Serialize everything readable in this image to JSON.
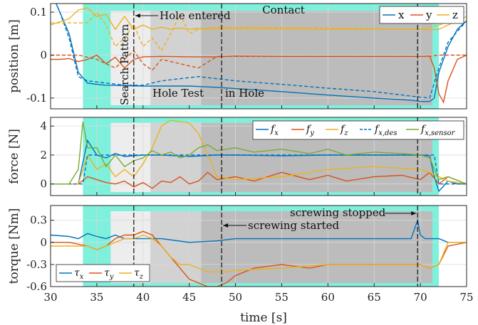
{
  "chart_data": [
    {
      "type": "line",
      "ylabel": "position [m]",
      "xlim": [
        30,
        75
      ],
      "ylim": [
        -0.125,
        0.12
      ],
      "yticks": [
        {
          "v": -0.1,
          "label": "-0.1"
        },
        {
          "v": 0,
          "label": "0"
        },
        {
          "v": 0.1,
          "label": "0.1"
        }
      ],
      "legend_position": "top-right",
      "annotations": [
        "Contact",
        "Hole entered",
        "Search Pattern",
        "Hole Test",
        "in Hole"
      ],
      "series": [
        {
          "name": "x",
          "color": "#0072bd",
          "dashed": false,
          "x": [
            30,
            31,
            32,
            33,
            34,
            35,
            36,
            38,
            40,
            42,
            45,
            48,
            50,
            55,
            60,
            65,
            69,
            70,
            71,
            71.5,
            72,
            73,
            74,
            75
          ],
          "y": [
            0.15,
            0.1,
            0.05,
            -0.04,
            -0.065,
            -0.068,
            -0.07,
            -0.071,
            -0.072,
            -0.072,
            -0.072,
            -0.075,
            -0.078,
            -0.085,
            -0.093,
            -0.1,
            -0.105,
            -0.108,
            -0.108,
            -0.1,
            -0.04,
            0.02,
            0.06,
            0.08
          ]
        },
        {
          "name": "y",
          "color": "#d95319",
          "dashed": false,
          "x": [
            30,
            31,
            32,
            33,
            34,
            35,
            36,
            37,
            38,
            39,
            40,
            42,
            45,
            48,
            50,
            55,
            60,
            65,
            70,
            71,
            71.5,
            72,
            72.5,
            73,
            74,
            75
          ],
          "y": [
            -0.01,
            -0.01,
            -0.008,
            -0.015,
            -0.01,
            0,
            -0.02,
            -0.005,
            -0.03,
            -0.01,
            -0.004,
            -0.003,
            -0.004,
            -0.004,
            -0.002,
            -0.003,
            -0.003,
            -0.003,
            -0.003,
            -0.002,
            -0.03,
            -0.09,
            -0.11,
            -0.06,
            -0.01,
            0
          ]
        },
        {
          "name": "z",
          "color": "#edb120",
          "dashed": false,
          "x": [
            30,
            32,
            33,
            34,
            35,
            36,
            37,
            38,
            39,
            40,
            41,
            42,
            43,
            44,
            45,
            46,
            47,
            48,
            50,
            55,
            60,
            65,
            70,
            71,
            72,
            73,
            74,
            75
          ],
          "y": [
            0.07,
            0.085,
            0.105,
            0.11,
            0.09,
            0.095,
            0.06,
            0.09,
            0.06,
            0.07,
            0.06,
            0.065,
            0.06,
            0.063,
            0.06,
            0.062,
            0.06,
            0.062,
            0.061,
            0.061,
            0.06,
            0.06,
            0.06,
            0.059,
            0.06,
            0.07,
            0.08,
            0.09
          ]
        },
        {
          "name": "x_des",
          "color": "#0072bd",
          "dashed": true,
          "x": [
            30,
            31,
            32,
            33,
            34,
            36,
            38,
            40,
            42,
            44,
            46,
            48,
            50,
            55,
            60,
            65,
            70,
            71,
            72,
            73,
            75
          ],
          "y": [
            0.15,
            0.1,
            0.04,
            -0.05,
            -0.06,
            -0.065,
            -0.07,
            -0.07,
            -0.06,
            -0.055,
            -0.05,
            -0.055,
            -0.06,
            -0.068,
            -0.077,
            -0.085,
            -0.098,
            -0.1,
            -0.03,
            0.03,
            0.08
          ]
        },
        {
          "name": "y_des",
          "color": "#d95319",
          "dashed": true,
          "x": [
            30,
            33,
            35,
            37,
            38,
            39,
            40,
            41,
            42,
            44,
            46,
            48,
            50,
            60,
            70,
            71,
            72,
            75
          ],
          "y": [
            0,
            0,
            -0.01,
            -0.03,
            -0.01,
            0.01,
            -0.02,
            -0.035,
            -0.01,
            -0.02,
            -0.03,
            -0.003,
            -0.003,
            -0.003,
            -0.003,
            -0.003,
            0,
            0
          ]
        },
        {
          "name": "z_des",
          "color": "#edb120",
          "dashed": true,
          "x": [
            30,
            34,
            35,
            36,
            37,
            38,
            39,
            40,
            41,
            42,
            43,
            44,
            45,
            46,
            48,
            50,
            60,
            70,
            72,
            75
          ],
          "y": [
            0.075,
            0.075,
            0.1,
            0.07,
            0.02,
            0.04,
            0.07,
            0.02,
            0.04,
            0.01,
            0.05,
            0.095,
            0.05,
            0.06,
            0.065,
            0.065,
            0.063,
            0.06,
            0.07,
            0.09
          ]
        }
      ]
    },
    {
      "type": "line",
      "ylabel": "force [N]",
      "xlim": [
        30,
        75
      ],
      "ylim": [
        -0.8,
        4.6
      ],
      "yticks": [
        {
          "v": 0,
          "label": "0"
        },
        {
          "v": 2,
          "label": "2"
        },
        {
          "v": 4,
          "label": "4"
        }
      ],
      "legend_position": "top-right",
      "legend_entries": [
        "f_x",
        "f_y",
        "f_z",
        "f_x,des",
        "f_x,sensor"
      ],
      "series": [
        {
          "name": "f_x",
          "color": "#0072bd",
          "dashed": false,
          "x": [
            30,
            32,
            33,
            33.5,
            34,
            35,
            36,
            37,
            38,
            40,
            42,
            45,
            48,
            50,
            55,
            60,
            65,
            70,
            71,
            71.5,
            72,
            73,
            74,
            75
          ],
          "y": [
            0,
            0,
            0,
            1.5,
            3,
            2,
            1.8,
            2.1,
            1.9,
            2,
            2,
            1.9,
            2,
            2,
            1.95,
            2,
            2,
            2,
            1.95,
            0.5,
            -0.5,
            0.2,
            0,
            0
          ]
        },
        {
          "name": "f_y",
          "color": "#d95319",
          "dashed": false,
          "x": [
            30,
            33,
            34,
            35,
            36,
            37,
            38,
            39,
            40,
            41,
            42,
            43,
            44,
            45,
            46,
            47,
            48,
            50,
            52,
            55,
            58,
            60,
            62,
            65,
            68,
            70,
            71,
            72,
            73,
            75
          ],
          "y": [
            0,
            0,
            0.5,
            0.3,
            0.1,
            0,
            0.2,
            -0.2,
            0.1,
            -0.3,
            0.2,
            0.1,
            0.5,
            0,
            0.2,
            0.8,
            0.3,
            0.5,
            0.2,
            0.8,
            0.3,
            0.6,
            0.2,
            0.5,
            0.6,
            0.3,
            0.8,
            0,
            0.5,
            0
          ]
        },
        {
          "name": "f_z",
          "color": "#edb120",
          "dashed": false,
          "x": [
            30,
            33,
            34,
            35,
            36,
            37,
            38,
            39,
            40,
            41,
            42,
            43,
            44,
            45,
            46,
            47,
            48,
            50,
            55,
            60,
            65,
            70,
            71,
            72,
            73,
            75
          ],
          "y": [
            0,
            0,
            2,
            1,
            1.4,
            0.5,
            1,
            0.5,
            1.4,
            2.5,
            4,
            4.4,
            4.3,
            4.2,
            3.5,
            2,
            0.5,
            0.3,
            0.5,
            1,
            1.2,
            1,
            0.8,
            0.5,
            0.2,
            0
          ]
        },
        {
          "name": "f_x_des",
          "color": "#0072bd",
          "dashed": true,
          "x": [
            30,
            33.5,
            34,
            35,
            36,
            40,
            45,
            50,
            55,
            60,
            65,
            70,
            71.5,
            72,
            75
          ],
          "y": [
            0,
            0,
            2,
            2,
            2,
            2,
            2,
            2,
            2,
            2,
            2,
            2,
            2,
            0,
            0
          ]
        },
        {
          "name": "f_x_sensor",
          "color": "#77ac30",
          "dashed": false,
          "x": [
            30,
            32,
            33,
            33.5,
            34,
            35,
            36,
            37,
            38,
            39,
            40,
            41,
            42,
            43,
            44,
            45,
            46,
            47,
            48,
            50,
            52,
            55,
            58,
            60,
            62,
            65,
            68,
            70,
            71,
            72,
            73,
            75
          ],
          "y": [
            0,
            0,
            1,
            4.3,
            2.5,
            2.5,
            1.2,
            2,
            1.2,
            1.6,
            1.8,
            2.3,
            2,
            2.2,
            1.8,
            2,
            2.5,
            2.7,
            2.3,
            2.5,
            2.2,
            2.4,
            2.1,
            2.4,
            2,
            2.2,
            2.1,
            2,
            1.8,
            0.3,
            0.5,
            0
          ]
        }
      ]
    },
    {
      "type": "line",
      "ylabel": "torque [Nm]",
      "xlabel": "time [s]",
      "xlim": [
        30,
        75
      ],
      "ylim": [
        -0.6,
        0.5
      ],
      "yticks": [
        {
          "v": -0.6,
          "label": "-0.6"
        },
        {
          "v": -0.3,
          "label": "-0.3"
        },
        {
          "v": 0,
          "label": "0"
        },
        {
          "v": 0.3,
          "label": "0.3"
        }
      ],
      "xticks": [
        30,
        35,
        40,
        45,
        50,
        55,
        60,
        65,
        70,
        75
      ],
      "legend_position": "bottom-left",
      "legend_entries": [
        "τx",
        "τy",
        "τz"
      ],
      "annotations": [
        "screwing started",
        "screwing stopped"
      ],
      "series": [
        {
          "name": "τx",
          "color": "#0072bd",
          "dashed": false,
          "x": [
            30,
            32,
            33,
            34,
            35,
            36,
            37,
            38,
            40,
            42,
            45,
            48,
            50,
            55,
            60,
            65,
            69,
            69.7,
            70,
            70.5,
            72,
            73,
            75
          ],
          "y": [
            0.1,
            0.08,
            0.05,
            0.12,
            0.08,
            0.05,
            0.1,
            0.05,
            0.05,
            0.05,
            0,
            0.02,
            0.05,
            0.05,
            0.05,
            0.05,
            0.05,
            0.3,
            0.1,
            0.05,
            0.05,
            0,
            0
          ]
        },
        {
          "name": "τy",
          "color": "#d95319",
          "dashed": false,
          "x": [
            30,
            32,
            34,
            35,
            36,
            37,
            38,
            39,
            40,
            41,
            42,
            43,
            44,
            45,
            46,
            47,
            48,
            49,
            50,
            52,
            55,
            58,
            60,
            65,
            70,
            71,
            72,
            73,
            75
          ],
          "y": [
            0,
            0,
            -0.05,
            -0.1,
            -0.05,
            0.05,
            0.1,
            0.1,
            0.15,
            0.1,
            -0.05,
            -0.2,
            -0.35,
            -0.5,
            -0.55,
            -0.6,
            -0.6,
            -0.55,
            -0.45,
            -0.35,
            -0.3,
            -0.35,
            -0.3,
            -0.3,
            -0.3,
            -0.35,
            -0.3,
            -0.05,
            0
          ]
        },
        {
          "name": "τz",
          "color": "#edb120",
          "dashed": false,
          "x": [
            30,
            34,
            35,
            36,
            37,
            38,
            39,
            40,
            41,
            42,
            43,
            44,
            45,
            46,
            47,
            48,
            49,
            50,
            55,
            60,
            65,
            70,
            71,
            72,
            73,
            75
          ],
          "y": [
            -0.05,
            -0.05,
            -0.1,
            -0.05,
            0,
            0.05,
            0.05,
            0.1,
            0.05,
            -0.05,
            -0.2,
            -0.3,
            -0.3,
            -0.35,
            -0.4,
            -0.4,
            -0.4,
            -0.38,
            -0.35,
            -0.3,
            -0.3,
            -0.3,
            -0.35,
            -0.3,
            0,
            0
          ]
        }
      ]
    }
  ],
  "phase_markers": {
    "contact_start": 33.5,
    "contact_end": 72,
    "search_start": 36.5,
    "test_start": 40.8,
    "inhole_start": 46.3,
    "inhole_end": 71.3,
    "hole_entered": 39,
    "screwing_started": 48.5,
    "screwing_stopped": 69.7
  },
  "labels": {
    "contact": "Contact",
    "hole_entered": "Hole entered",
    "search_pattern": "Search Pattern",
    "hole_test": "Hole Test",
    "in_hole": "in Hole",
    "screwing_started": "screwing started",
    "screwing_stopped": "screwing stopped",
    "xlabel": "time [s]"
  },
  "colors": {
    "contact": "#7ff0dc",
    "search": "#ededed",
    "test": "#d2d2d2",
    "inhole": "#bcbcbc",
    "grid": "#d9d9d9"
  }
}
